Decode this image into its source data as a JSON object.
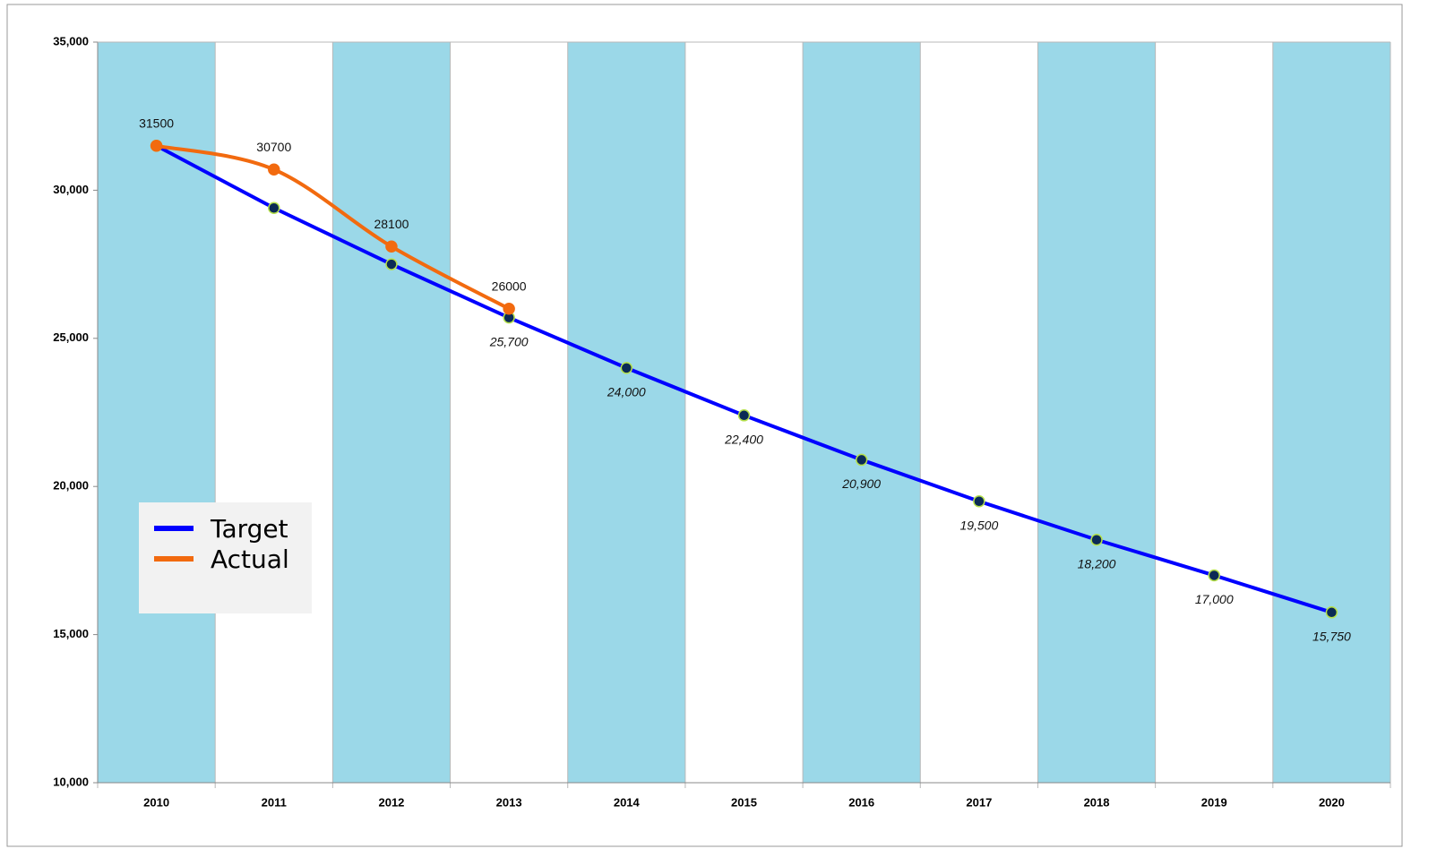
{
  "chart_data": {
    "type": "line",
    "categories": [
      "2010",
      "2011",
      "2012",
      "2013",
      "2014",
      "2015",
      "2016",
      "2017",
      "2018",
      "2019",
      "2020"
    ],
    "series": [
      {
        "name": "Target",
        "color": "#0000ff",
        "marker_color": "#0b2a55",
        "values": [
          31500,
          29400,
          27500,
          25700,
          24000,
          22400,
          20900,
          19500,
          18200,
          17000,
          15750
        ],
        "value_labels": [
          null,
          null,
          null,
          "25,700",
          "24,000",
          "22,400",
          "20,900",
          "19,500",
          "18,200",
          "17,000",
          "15,750"
        ]
      },
      {
        "name": "Actual",
        "color": "#f26a0f",
        "marker_color": "#f26a0f",
        "smooth": true,
        "values": [
          31500,
          30700,
          28100,
          26000,
          null,
          null,
          null,
          null,
          null,
          null,
          null
        ]
      }
    ],
    "ylim": [
      10000,
      35000
    ],
    "yticks": [
      {
        "value": 10000,
        "label": "10,000"
      },
      {
        "value": 15000,
        "label": "15,000"
      },
      {
        "value": 20000,
        "label": "20,000"
      },
      {
        "value": 25000,
        "label": "25,000"
      },
      {
        "value": 30000,
        "label": "30,000"
      },
      {
        "value": 35000,
        "label": "35,000"
      }
    ],
    "band_color": "#9bd8e8",
    "legend": "left"
  }
}
